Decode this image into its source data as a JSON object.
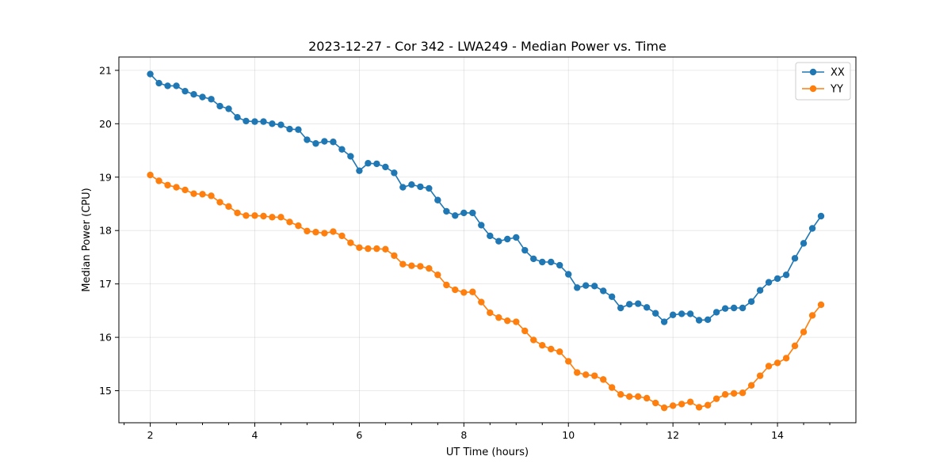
{
  "chart_data": {
    "type": "line",
    "title": "2023-12-27 - Cor 342 - LWA249 - Median Power vs. Time",
    "xlabel": "UT Time (hours)",
    "ylabel": "Median Power (CPU)",
    "xlim": [
      1.4,
      15.5
    ],
    "ylim": [
      14.4,
      21.25
    ],
    "xticks": [
      2,
      4,
      6,
      8,
      10,
      12,
      14
    ],
    "xtick_labels": [
      "2",
      "4",
      "6",
      "8",
      "10",
      "12",
      "14"
    ],
    "yticks": [
      15,
      16,
      17,
      18,
      19,
      20,
      21
    ],
    "ytick_labels": [
      "15",
      "16",
      "17",
      "18",
      "19",
      "20",
      "21"
    ],
    "grid": true,
    "legend_position": "top-right",
    "x": [
      2.0,
      2.167,
      2.333,
      2.5,
      2.667,
      2.833,
      3.0,
      3.167,
      3.333,
      3.5,
      3.667,
      3.833,
      4.0,
      4.167,
      4.333,
      4.5,
      4.667,
      4.833,
      5.0,
      5.167,
      5.333,
      5.5,
      5.667,
      5.833,
      6.0,
      6.167,
      6.333,
      6.5,
      6.667,
      6.833,
      7.0,
      7.167,
      7.333,
      7.5,
      7.667,
      7.833,
      8.0,
      8.167,
      8.333,
      8.5,
      8.667,
      8.833,
      9.0,
      9.167,
      9.333,
      9.5,
      9.667,
      9.833,
      10.0,
      10.167,
      10.333,
      10.5,
      10.667,
      10.833,
      11.0,
      11.167,
      11.333,
      11.5,
      11.667,
      11.833,
      12.0,
      12.167,
      12.333,
      12.5,
      12.667,
      12.833,
      13.0,
      13.167,
      13.333,
      13.5,
      13.667,
      13.833,
      14.0,
      14.167,
      14.333,
      14.5,
      14.667,
      14.833
    ],
    "series": [
      {
        "name": "XX",
        "color": "#1f77b4",
        "values": [
          20.93,
          20.76,
          20.71,
          20.71,
          20.61,
          20.55,
          20.5,
          20.46,
          20.33,
          20.28,
          20.12,
          20.05,
          20.04,
          20.04,
          20.0,
          19.98,
          19.9,
          19.89,
          19.7,
          19.63,
          19.67,
          19.66,
          19.52,
          19.39,
          19.12,
          19.26,
          19.25,
          19.19,
          19.08,
          18.81,
          18.86,
          18.82,
          18.79,
          18.57,
          18.36,
          18.28,
          18.33,
          18.33,
          18.1,
          17.9,
          17.8,
          17.84,
          17.87,
          17.63,
          17.47,
          17.41,
          17.41,
          17.35,
          17.18,
          16.93,
          16.97,
          16.96,
          16.87,
          16.76,
          16.55,
          16.62,
          16.63,
          16.56,
          16.45,
          16.29,
          16.42,
          16.44,
          16.44,
          16.32,
          16.33,
          16.47,
          16.54,
          16.55,
          16.55,
          16.67,
          16.88,
          17.03,
          17.1,
          17.17,
          17.48,
          17.76,
          18.04,
          18.27
        ]
      },
      {
        "name": "YY",
        "color": "#ff7f0e",
        "values": [
          19.04,
          18.93,
          18.85,
          18.81,
          18.76,
          18.69,
          18.68,
          18.65,
          18.53,
          18.45,
          18.33,
          18.28,
          18.28,
          18.27,
          18.25,
          18.25,
          18.16,
          18.09,
          17.99,
          17.97,
          17.95,
          17.98,
          17.9,
          17.77,
          17.68,
          17.66,
          17.66,
          17.65,
          17.53,
          17.37,
          17.34,
          17.33,
          17.29,
          17.17,
          16.98,
          16.89,
          16.84,
          16.85,
          16.66,
          16.46,
          16.37,
          16.31,
          16.29,
          16.12,
          15.95,
          15.85,
          15.78,
          15.73,
          15.55,
          15.34,
          15.3,
          15.28,
          15.21,
          15.06,
          14.93,
          14.89,
          14.89,
          14.86,
          14.77,
          14.68,
          14.72,
          14.75,
          14.79,
          14.69,
          14.73,
          14.85,
          14.93,
          14.95,
          14.96,
          15.1,
          15.28,
          15.46,
          15.52,
          15.61,
          15.84,
          16.1,
          16.41,
          16.61
        ]
      }
    ]
  }
}
